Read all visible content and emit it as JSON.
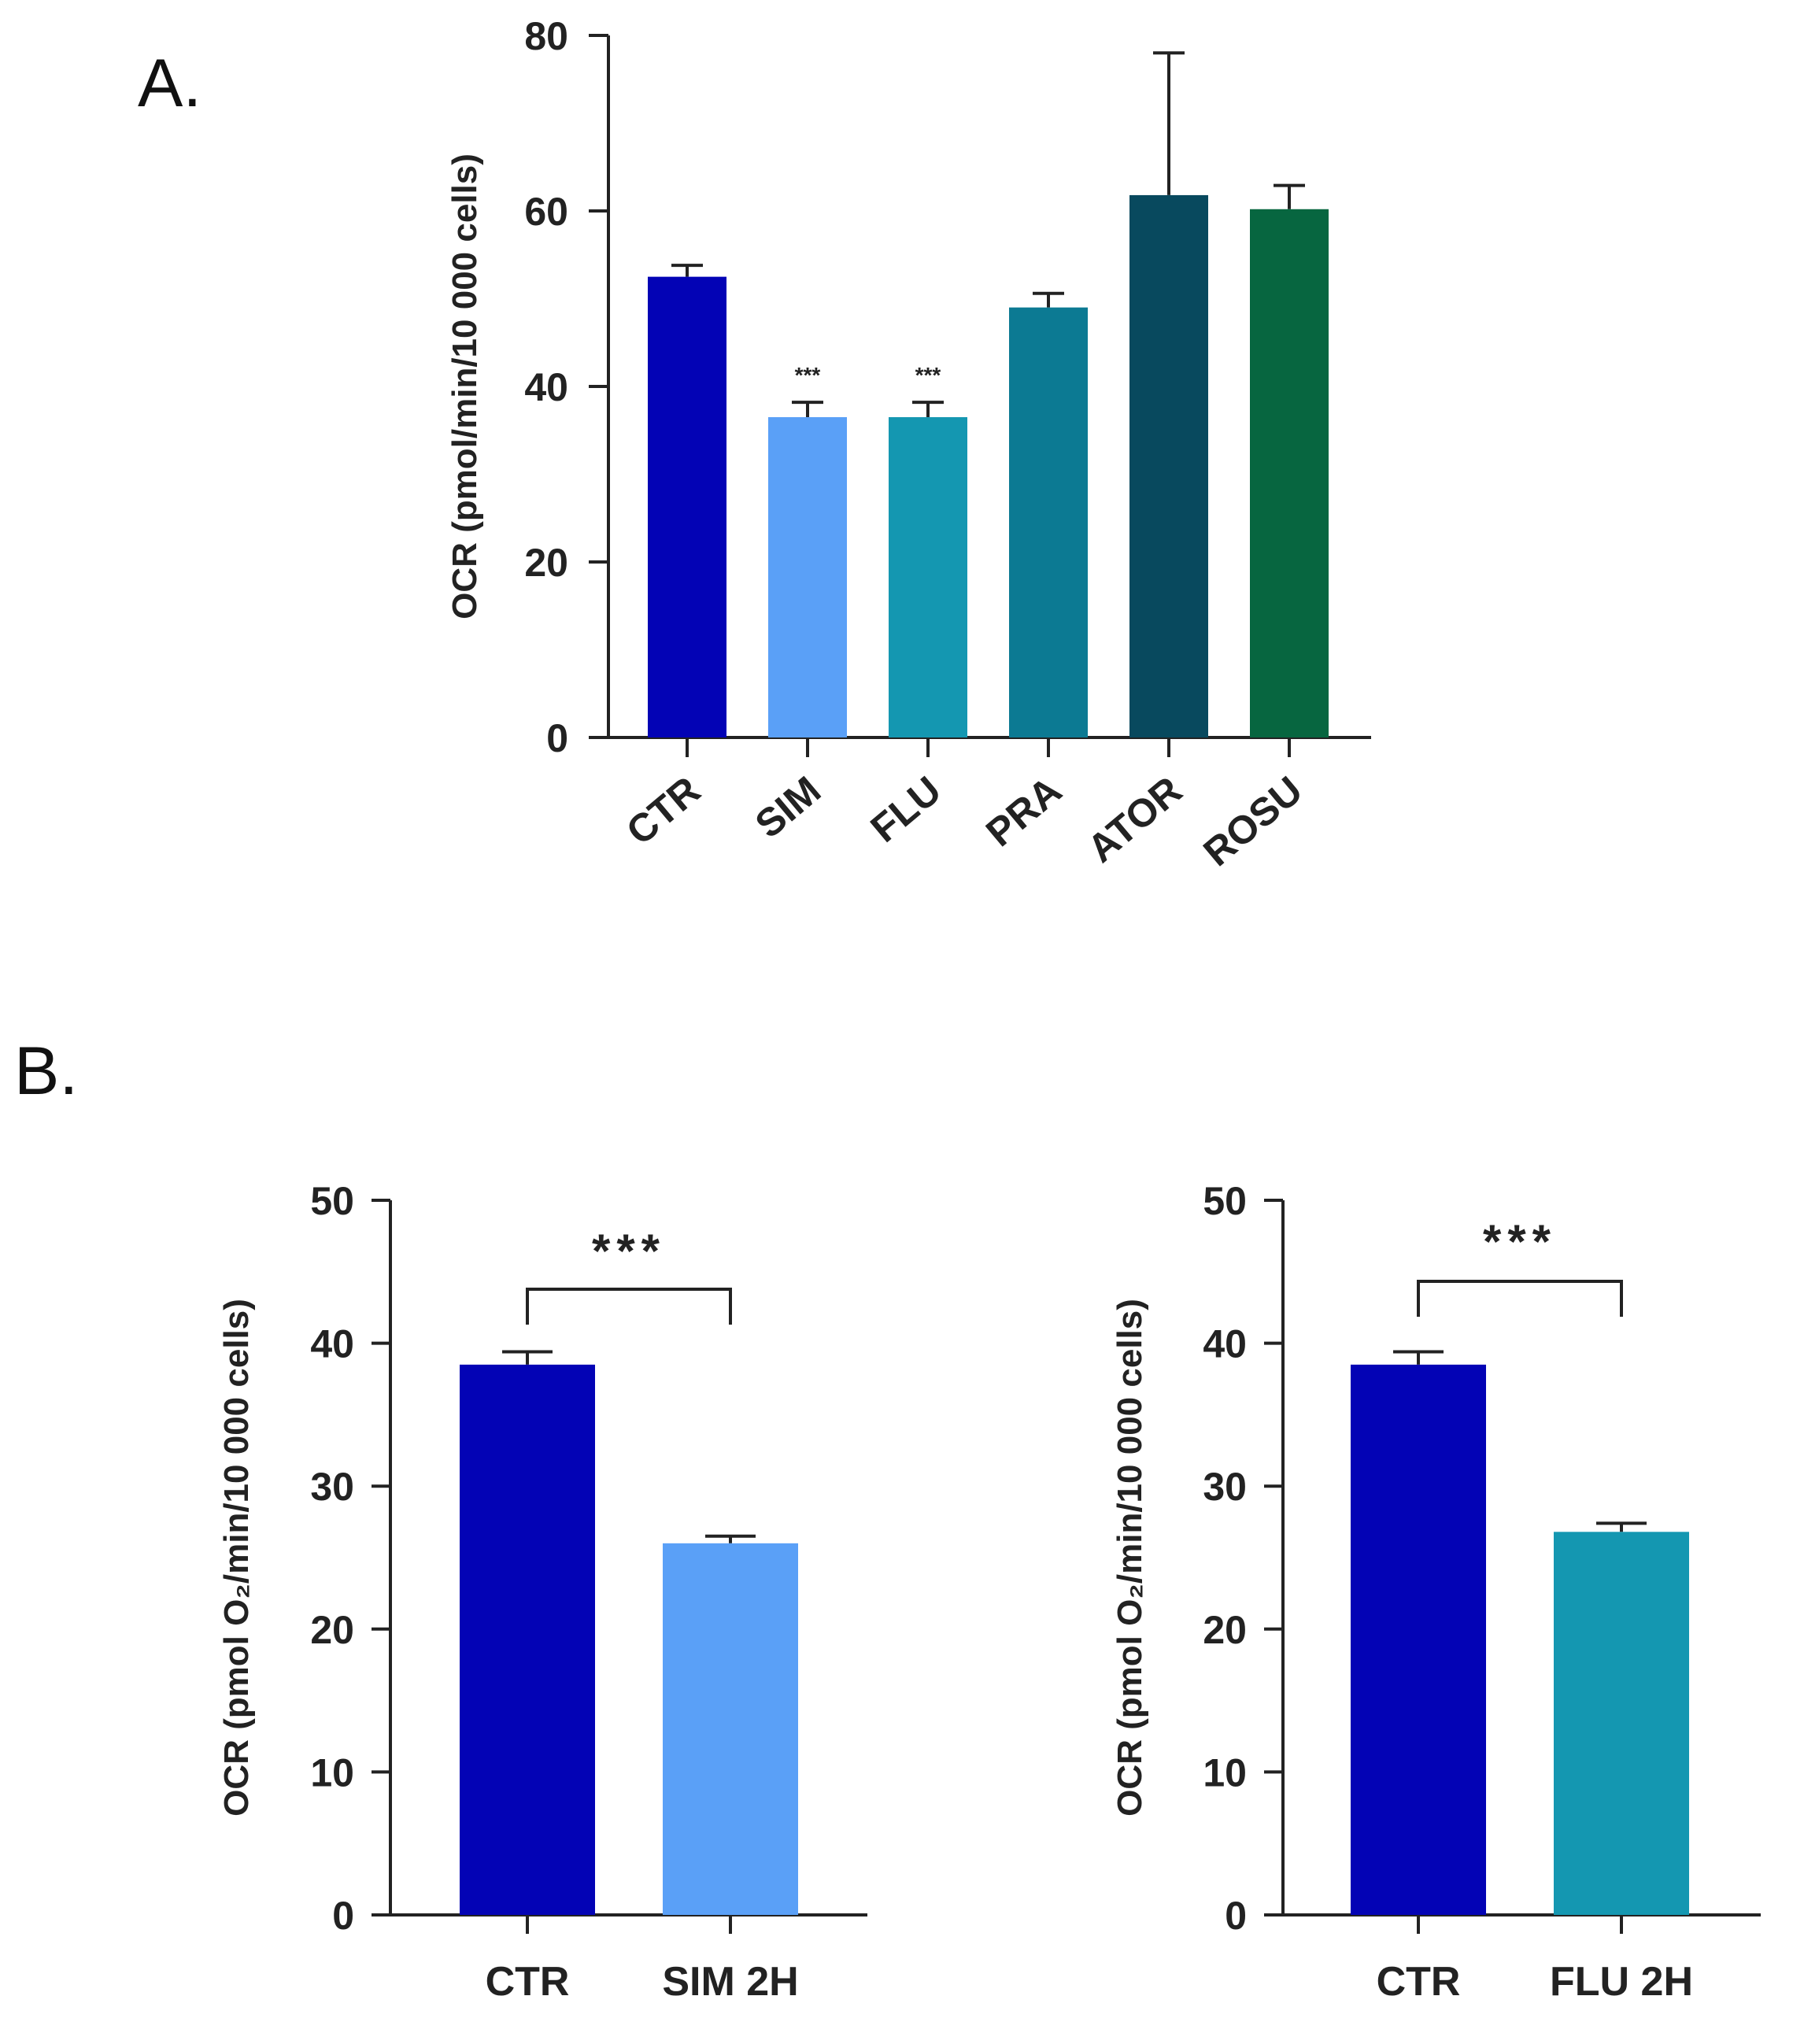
{
  "figure": {
    "panel_a_label": "A.",
    "panel_b_label": "B."
  },
  "chart_data": [
    {
      "id": "A",
      "type": "bar",
      "title": "",
      "xlabel": "",
      "ylabel": "OCR (pmol/min/10 000 cells)",
      "ylim": [
        0,
        80
      ],
      "yticks": [
        0,
        20,
        40,
        60,
        80
      ],
      "categories": [
        "CTR",
        "SIM",
        "FLU",
        "PRA",
        "ATOR",
        "ROSU"
      ],
      "values": [
        52.5,
        36.5,
        36.5,
        49,
        61.8,
        60.2
      ],
      "errors": [
        1.3,
        1.7,
        1.7,
        1.6,
        16.2,
        2.7
      ],
      "colors": [
        "#0303B5",
        "#5AA0F7",
        "#1497B1",
        "#0C7A93",
        "#08495E",
        "#076640"
      ],
      "significance": [
        "",
        "***",
        "***",
        "",
        "",
        ""
      ]
    },
    {
      "id": "B1",
      "type": "bar",
      "title": "",
      "xlabel": "",
      "ylabel": "OCR (pmol O₂/min/10 000 cells)",
      "ylim": [
        0,
        50
      ],
      "yticks": [
        0,
        10,
        20,
        30,
        40,
        50
      ],
      "categories": [
        "CTR",
        "SIM 2H"
      ],
      "values": [
        38.5,
        26
      ],
      "errors": [
        0.9,
        0.5
      ],
      "colors": [
        "#0303B5",
        "#5AA0F7"
      ],
      "comparison": {
        "from": 0,
        "to": 1,
        "label": "***"
      }
    },
    {
      "id": "B2",
      "type": "bar",
      "title": "",
      "xlabel": "",
      "ylabel": "OCR (pmol O₂/min/10 000 cells)",
      "ylim": [
        0,
        50
      ],
      "yticks": [
        0,
        10,
        20,
        30,
        40,
        50
      ],
      "categories": [
        "CTR",
        "FLU 2H"
      ],
      "values": [
        38.5,
        26.8
      ],
      "errors": [
        0.9,
        0.6
      ],
      "colors": [
        "#0303B5",
        "#1497B1"
      ],
      "comparison": {
        "from": 0,
        "to": 1,
        "label": "***"
      }
    }
  ]
}
